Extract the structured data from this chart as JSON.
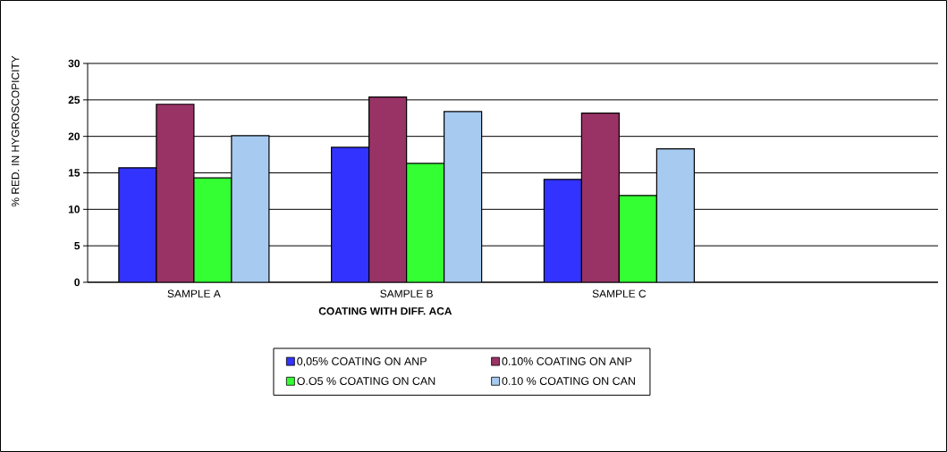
{
  "chart_data": {
    "type": "bar",
    "xlabel": "COATING WITH  DIFF. ACA",
    "ylabel": "% RED. IN HYGROSCOPICITY",
    "categories": [
      "SAMPLE A",
      "SAMPLE B",
      "SAMPLE C",
      null
    ],
    "series": [
      {
        "name": "0,05% COATING ON ANP",
        "color": "#3333ff",
        "values": [
          15.7,
          18.5,
          14.1,
          null
        ]
      },
      {
        "name": "0.10% COATING ON ANP",
        "color": "#993366",
        "values": [
          24.4,
          25.4,
          23.2,
          null
        ]
      },
      {
        "name": "O.O5 % COATING ON CAN",
        "color": "#33ff33",
        "values": [
          14.3,
          16.3,
          11.9,
          null
        ]
      },
      {
        "name": "0.10 % COATING ON CAN",
        "color": "#a6caf0",
        "values": [
          20.1,
          23.4,
          18.3,
          null
        ]
      }
    ],
    "ylim": [
      0,
      30
    ],
    "yticks": [
      0,
      5,
      10,
      15,
      20,
      25,
      30
    ],
    "grid": "y",
    "legend": "bottom"
  }
}
